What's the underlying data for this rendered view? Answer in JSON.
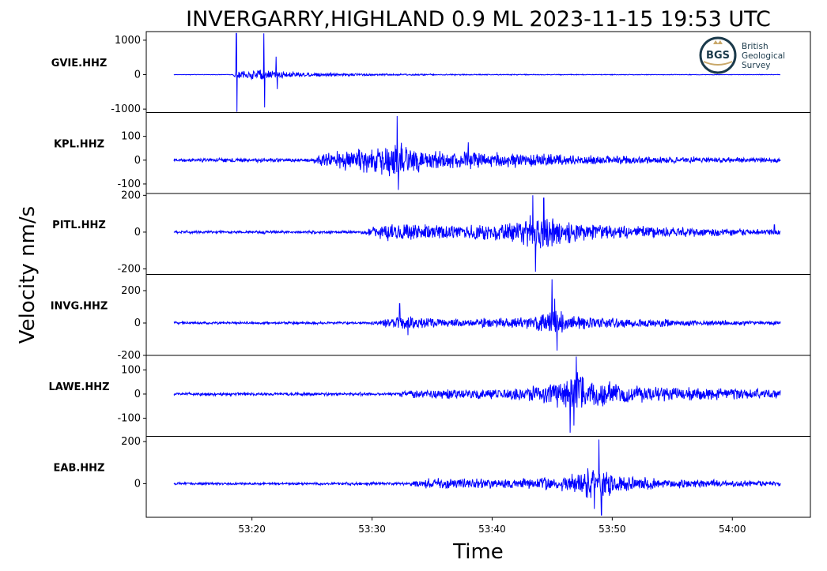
{
  "chart_data": {
    "type": "line",
    "title": "INVERGARRY,HIGHLAND 0.9 ML   2023-11-15 19:53 UTC",
    "xlabel": "Time",
    "ylabel": "Velocity nm/s",
    "xticks": [
      "53:20",
      "53:30",
      "53:40",
      "53:50",
      "54:00"
    ],
    "xtick_values": [
      20,
      30,
      40,
      50,
      60
    ],
    "xlim": [
      11.2,
      66.5
    ],
    "line_color": "#0000ff",
    "logo": {
      "abbr": "BGS",
      "lines": [
        "British",
        "Geological",
        "Survey"
      ]
    },
    "panels": [
      {
        "station": "GVIE.HHZ",
        "ylim": [
          -1100,
          1250
        ],
        "yticks": [
          1000,
          0,
          -1000
        ],
        "ytick_labels": [
          "1000",
          "0",
          "-1000"
        ],
        "x_start": 13.5,
        "x_end": 64.0,
        "noise": 5,
        "envelope": [
          [
            13.5,
            4
          ],
          [
            18.4,
            5
          ],
          [
            18.6,
            140
          ],
          [
            19.5,
            110
          ],
          [
            20.5,
            170
          ],
          [
            21.5,
            140
          ],
          [
            22.5,
            110
          ],
          [
            24,
            80
          ],
          [
            26,
            60
          ],
          [
            28,
            45
          ],
          [
            31,
            30
          ],
          [
            35,
            22
          ],
          [
            40,
            14
          ],
          [
            50,
            9
          ],
          [
            64,
            7
          ]
        ],
        "spikes": [
          {
            "x": 18.7,
            "v": 1200
          },
          {
            "x": 18.75,
            "v": -1080
          },
          {
            "x": 21.0,
            "v": 1200
          },
          {
            "x": 21.05,
            "v": -950
          },
          {
            "x": 22.0,
            "v": 520
          },
          {
            "x": 22.1,
            "v": -420
          }
        ]
      },
      {
        "station": "KPL.HHZ",
        "ylim": [
          -140,
          200
        ],
        "yticks": [
          100,
          0,
          -100
        ],
        "ytick_labels": [
          "100",
          "0",
          "-100"
        ],
        "x_start": 13.5,
        "x_end": 64.0,
        "noise": 4,
        "envelope": [
          [
            13.5,
            6
          ],
          [
            25,
            7
          ],
          [
            25.5,
            22
          ],
          [
            26.5,
            38
          ],
          [
            28,
            45
          ],
          [
            30,
            58
          ],
          [
            31.5,
            80
          ],
          [
            32.5,
            78
          ],
          [
            34,
            55
          ],
          [
            36,
            42
          ],
          [
            40,
            34
          ],
          [
            45,
            26
          ],
          [
            52,
            15
          ],
          [
            64,
            9
          ]
        ],
        "spikes": [
          {
            "x": 32.1,
            "v": 185
          },
          {
            "x": 32.2,
            "v": -125
          },
          {
            "x": 38.0,
            "v": 75
          }
        ]
      },
      {
        "station": "PITL.HHZ",
        "ylim": [
          -230,
          210
        ],
        "yticks": [
          200,
          0,
          -200
        ],
        "ytick_labels": [
          "200",
          "0",
          "-200"
        ],
        "x_start": 13.5,
        "x_end": 64.0,
        "noise": 4,
        "envelope": [
          [
            13.5,
            6
          ],
          [
            29,
            8
          ],
          [
            30,
            32
          ],
          [
            32,
            55
          ],
          [
            35,
            40
          ],
          [
            38,
            40
          ],
          [
            41,
            55
          ],
          [
            42.5,
            75
          ],
          [
            43.5,
            130
          ],
          [
            45,
            90
          ],
          [
            47,
            55
          ],
          [
            50,
            40
          ],
          [
            55,
            28
          ],
          [
            64,
            14
          ]
        ],
        "spikes": [
          {
            "x": 43.4,
            "v": 200
          },
          {
            "x": 43.6,
            "v": -215
          },
          {
            "x": 44.3,
            "v": 185
          },
          {
            "x": 63.5,
            "v": 40
          }
        ]
      },
      {
        "station": "INVG.HHZ",
        "ylim": [
          -200,
          300
        ],
        "yticks": [
          200,
          0,
          -200
        ],
        "ytick_labels": [
          "200",
          "0",
          "-200"
        ],
        "x_start": 13.5,
        "x_end": 64.0,
        "noise": 4,
        "envelope": [
          [
            13.5,
            6
          ],
          [
            30,
            7
          ],
          [
            31,
            22
          ],
          [
            32.5,
            45
          ],
          [
            34,
            35
          ],
          [
            38,
            25
          ],
          [
            42,
            35
          ],
          [
            44,
            60
          ],
          [
            45,
            90
          ],
          [
            46,
            70
          ],
          [
            48,
            42
          ],
          [
            52,
            28
          ],
          [
            58,
            18
          ],
          [
            64,
            12
          ]
        ],
        "spikes": [
          {
            "x": 32.3,
            "v": 120
          },
          {
            "x": 33.0,
            "v": -75
          },
          {
            "x": 45.0,
            "v": 270
          },
          {
            "x": 45.4,
            "v": -170
          },
          {
            "x": 45.2,
            "v": 150
          }
        ]
      },
      {
        "station": "LAWE.HHZ",
        "ylim": [
          -175,
          160
        ],
        "yticks": [
          100,
          0,
          -100
        ],
        "ytick_labels": [
          "100",
          "0",
          "-100"
        ],
        "x_start": 13.5,
        "x_end": 64.0,
        "noise": 3,
        "envelope": [
          [
            13.5,
            5
          ],
          [
            32,
            6
          ],
          [
            32.5,
            16
          ],
          [
            36,
            20
          ],
          [
            40,
            22
          ],
          [
            44,
            40
          ],
          [
            46,
            70
          ],
          [
            47,
            100
          ],
          [
            48,
            70
          ],
          [
            51,
            40
          ],
          [
            56,
            28
          ],
          [
            64,
            20
          ]
        ],
        "spikes": [
          {
            "x": 46.5,
            "v": -160
          },
          {
            "x": 47.0,
            "v": 155
          },
          {
            "x": 46.8,
            "v": -130
          }
        ]
      },
      {
        "station": "EAB.HHZ",
        "ylim": [
          -160,
          225
        ],
        "yticks": [
          200,
          0
        ],
        "ytick_labels": [
          "200",
          "0"
        ],
        "x_start": 13.5,
        "x_end": 64.0,
        "noise": 3,
        "envelope": [
          [
            13.5,
            5
          ],
          [
            33,
            6
          ],
          [
            34,
            22
          ],
          [
            35.5,
            30
          ],
          [
            38,
            25
          ],
          [
            42,
            25
          ],
          [
            45,
            32
          ],
          [
            47,
            55
          ],
          [
            48,
            85
          ],
          [
            49,
            70
          ],
          [
            51,
            40
          ],
          [
            55,
            24
          ],
          [
            64,
            12
          ]
        ],
        "spikes": [
          {
            "x": 48.9,
            "v": 210
          },
          {
            "x": 49.1,
            "v": -150
          },
          {
            "x": 48.5,
            "v": -120
          }
        ]
      }
    ]
  }
}
